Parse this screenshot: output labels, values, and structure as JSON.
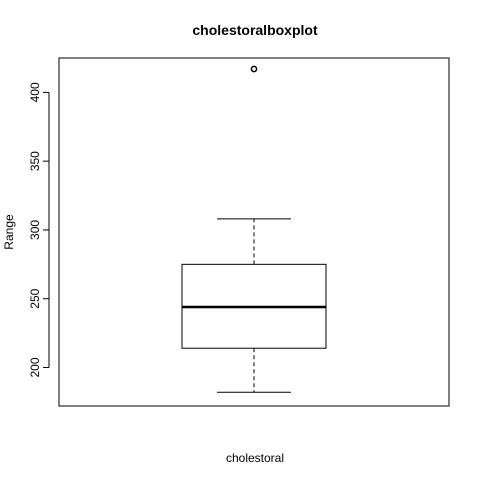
{
  "chart_data": {
    "type": "boxplot",
    "title": "cholestoralboxplot",
    "xlabel": "cholestoral",
    "ylabel": "Range",
    "ylim": [
      172,
      425
    ],
    "yticks": [
      "200",
      "250",
      "300",
      "350",
      "400"
    ],
    "grid": false,
    "series": [
      {
        "whisker_low": 182,
        "q1": 214,
        "median": 244,
        "q3": 275,
        "whisker_high": 308,
        "outliers": [
          417
        ]
      }
    ]
  }
}
